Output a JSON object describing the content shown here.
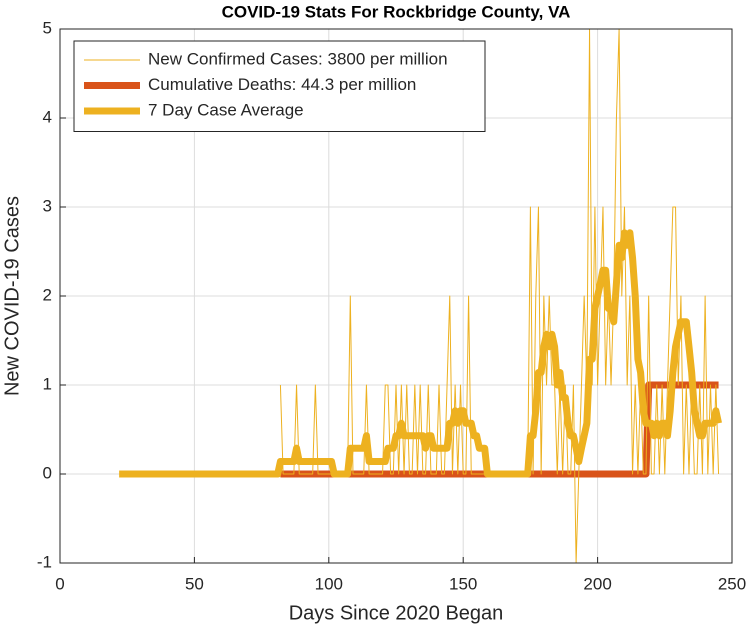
{
  "chart_data": {
    "type": "line",
    "title": "COVID-19 Stats For Rockbridge County, VA",
    "x_label": "Days Since 2020 Began",
    "y_label": "New COVID-19 Cases",
    "xlim": [
      0,
      250
    ],
    "xticks": [
      0,
      50,
      100,
      150,
      200,
      250
    ],
    "ylim": [
      -1,
      5
    ],
    "yticks": [
      -1,
      0,
      1,
      2,
      3,
      4,
      5
    ],
    "grid": true,
    "legend": "northwest",
    "x": [
      22,
      23,
      24,
      25,
      26,
      27,
      28,
      29,
      30,
      31,
      32,
      33,
      34,
      35,
      36,
      37,
      38,
      39,
      40,
      41,
      42,
      43,
      44,
      45,
      46,
      47,
      48,
      49,
      50,
      51,
      52,
      53,
      54,
      55,
      56,
      57,
      58,
      59,
      60,
      61,
      62,
      63,
      64,
      65,
      66,
      67,
      68,
      69,
      70,
      71,
      72,
      73,
      74,
      75,
      76,
      77,
      78,
      79,
      80,
      81,
      82,
      83,
      84,
      85,
      86,
      87,
      88,
      89,
      90,
      91,
      92,
      93,
      94,
      95,
      96,
      97,
      98,
      99,
      100,
      101,
      102,
      103,
      104,
      105,
      106,
      107,
      108,
      109,
      110,
      111,
      112,
      113,
      114,
      115,
      116,
      117,
      118,
      119,
      120,
      121,
      122,
      123,
      124,
      125,
      126,
      127,
      128,
      129,
      130,
      131,
      132,
      133,
      134,
      135,
      136,
      137,
      138,
      139,
      140,
      141,
      142,
      143,
      144,
      145,
      146,
      147,
      148,
      149,
      150,
      151,
      152,
      153,
      154,
      155,
      156,
      157,
      158,
      159,
      160,
      161,
      162,
      163,
      164,
      165,
      166,
      167,
      168,
      169,
      170,
      171,
      172,
      173,
      174,
      175,
      176,
      177,
      178,
      179,
      180,
      181,
      182,
      183,
      184,
      185,
      186,
      187,
      188,
      189,
      190,
      191,
      192,
      193,
      194,
      195,
      196,
      197,
      198,
      199,
      200,
      201,
      202,
      203,
      204,
      205,
      206,
      207,
      208,
      209,
      210,
      211,
      212,
      213,
      214,
      215,
      216,
      217,
      218,
      219,
      220,
      221,
      222,
      223,
      224,
      225,
      226,
      227,
      228,
      229,
      230,
      231,
      232,
      233,
      234,
      235,
      236,
      237,
      238,
      239,
      240,
      241,
      242,
      243,
      244,
      245
    ],
    "series": [
      {
        "name": "New Confirmed Cases: 3800 per million",
        "color": "#EDB120",
        "values": [
          null,
          null,
          null,
          null,
          null,
          null,
          null,
          null,
          null,
          null,
          null,
          null,
          null,
          null,
          null,
          null,
          null,
          null,
          null,
          null,
          null,
          null,
          null,
          null,
          null,
          null,
          null,
          null,
          null,
          null,
          null,
          null,
          null,
          null,
          null,
          null,
          null,
          null,
          null,
          null,
          null,
          null,
          null,
          null,
          null,
          null,
          null,
          null,
          null,
          null,
          null,
          null,
          null,
          null,
          null,
          null,
          null,
          null,
          null,
          null,
          1,
          0,
          0,
          0,
          0,
          0,
          1,
          0,
          0,
          0,
          0,
          0,
          0,
          1,
          0,
          0,
          0,
          0,
          0,
          0,
          0,
          0,
          0,
          0,
          0,
          0,
          2,
          0,
          0,
          0,
          0,
          0,
          1,
          0,
          0,
          0,
          0,
          0,
          0,
          1,
          1,
          0,
          0,
          1,
          0,
          1,
          0,
          1,
          0,
          0,
          1,
          0,
          1,
          0,
          0,
          1,
          0,
          0,
          0,
          1,
          0,
          0,
          1,
          2,
          0,
          1,
          0,
          1,
          0,
          0,
          2,
          0,
          0,
          0,
          0,
          0,
          0,
          0,
          0,
          0,
          0,
          0,
          0,
          0,
          0,
          0,
          0,
          0,
          0,
          0,
          0,
          0,
          0,
          3,
          0,
          2,
          3,
          0,
          2,
          1,
          2,
          1,
          1,
          0,
          1,
          0,
          1,
          0,
          0,
          1,
          -1,
          0,
          1,
          2,
          1,
          5,
          1,
          3,
          1,
          2,
          3,
          1,
          2,
          1,
          2,
          4,
          5,
          2,
          3,
          1,
          2,
          0,
          1,
          0,
          1,
          0,
          0,
          2,
          0,
          0,
          1,
          0,
          1,
          0,
          1,
          2,
          3,
          3,
          1,
          2,
          0,
          1,
          0,
          1,
          0,
          0,
          1,
          0,
          2,
          0,
          1,
          0,
          1,
          0
        ]
      },
      {
        "name": "Cumulative Deaths: 44.3 per million",
        "color": "#D95319",
        "values": [
          null,
          null,
          null,
          null,
          null,
          null,
          null,
          null,
          null,
          null,
          null,
          null,
          null,
          null,
          null,
          null,
          null,
          null,
          null,
          null,
          null,
          null,
          null,
          null,
          null,
          null,
          null,
          null,
          null,
          null,
          null,
          null,
          null,
          null,
          null,
          null,
          null,
          null,
          null,
          null,
          null,
          null,
          null,
          null,
          null,
          null,
          null,
          null,
          null,
          null,
          null,
          null,
          null,
          null,
          null,
          null,
          null,
          null,
          null,
          null,
          0,
          0,
          0,
          0,
          0,
          0,
          0,
          0,
          0,
          0,
          0,
          0,
          0,
          0,
          0,
          0,
          0,
          0,
          0,
          0,
          0,
          0,
          0,
          0,
          0,
          0,
          0,
          0,
          0,
          0,
          0,
          0,
          0,
          0,
          0,
          0,
          0,
          0,
          0,
          0,
          0,
          0,
          0,
          0,
          0,
          0,
          0,
          0,
          0,
          0,
          0,
          0,
          0,
          0,
          0,
          0,
          0,
          0,
          0,
          0,
          0,
          0,
          0,
          0,
          0,
          0,
          0,
          0,
          0,
          0,
          0,
          0,
          0,
          0,
          0,
          0,
          0,
          0,
          0,
          0,
          0,
          0,
          0,
          0,
          0,
          0,
          0,
          0,
          0,
          0,
          0,
          0,
          0,
          0,
          0,
          0,
          0,
          0,
          0,
          0,
          0,
          0,
          0,
          0,
          0,
          0,
          0,
          0,
          0,
          0,
          0,
          0,
          0,
          0,
          0,
          0,
          0,
          0,
          0,
          0,
          0,
          0,
          0,
          0,
          0,
          0,
          0,
          0,
          0,
          0,
          0,
          0,
          0,
          0,
          0,
          0,
          0,
          1,
          1,
          1,
          1,
          1,
          1,
          1,
          1,
          1,
          1,
          1,
          1,
          1,
          1,
          1,
          1,
          1,
          1,
          1,
          1,
          1,
          1,
          1,
          1,
          1,
          1,
          1
        ]
      },
      {
        "name": "7 Day Case Average",
        "color": "#EDB120",
        "values": [
          0,
          0,
          0,
          0,
          0,
          0,
          0,
          0,
          0,
          0,
          0,
          0,
          0,
          0,
          0,
          0,
          0,
          0,
          0,
          0,
          0,
          0,
          0,
          0,
          0,
          0,
          0,
          0,
          0,
          0,
          0,
          0,
          0,
          0,
          0,
          0,
          0,
          0,
          0,
          0,
          0,
          0,
          0,
          0,
          0,
          0,
          0,
          0,
          0,
          0,
          0,
          0,
          0,
          0,
          0,
          0,
          0,
          0,
          0,
          0,
          0.14,
          0.14,
          0.14,
          0.14,
          0.14,
          0.14,
          0.29,
          0.14,
          0.14,
          0.14,
          0.14,
          0.14,
          0.14,
          0.14,
          0.14,
          0.14,
          0.14,
          0.14,
          0.14,
          0.14,
          0,
          0,
          0,
          0,
          0,
          0,
          0.29,
          0.29,
          0.29,
          0.29,
          0.29,
          0.29,
          0.43,
          0.14,
          0.14,
          0.14,
          0.14,
          0.14,
          0.14,
          0.14,
          0.29,
          0.29,
          0.29,
          0.43,
          0.43,
          0.57,
          0.43,
          0.43,
          0.43,
          0.43,
          0.43,
          0.43,
          0.43,
          0.43,
          0.29,
          0.43,
          0.43,
          0.29,
          0.29,
          0.29,
          0.29,
          0.29,
          0.29,
          0.57,
          0.57,
          0.71,
          0.57,
          0.71,
          0.71,
          0.57,
          0.57,
          0.57,
          0.43,
          0.43,
          0.29,
          0.29,
          0.29,
          0,
          0,
          0,
          0,
          0,
          0,
          0,
          0,
          0,
          0,
          0,
          0,
          0,
          0,
          0,
          0,
          0.43,
          0.43,
          0.71,
          1.14,
          1.14,
          1.43,
          1.57,
          1.43,
          1.57,
          1.43,
          1,
          1.14,
          0.86,
          0.86,
          0.57,
          0.43,
          0.43,
          0.29,
          0.14,
          0.29,
          0.43,
          0.57,
          1.29,
          1.29,
          1.86,
          2,
          2.14,
          2.29,
          2.29,
          1.86,
          1.86,
          1.71,
          2.14,
          2.57,
          2.43,
          2.71,
          2.57,
          2.71,
          2.43,
          2,
          1.29,
          1.14,
          0.71,
          0.57,
          0.57,
          0.57,
          0.43,
          0.57,
          0.43,
          0.57,
          0.57,
          0.43,
          0.71,
          1.14,
          1.43,
          1.57,
          1.71,
          1.71,
          1.71,
          1.43,
          1.14,
          0.71,
          0.57,
          0.43,
          0.43,
          0.57,
          0.57,
          0.57,
          0.57,
          0.71,
          0.57
        ]
      }
    ]
  }
}
